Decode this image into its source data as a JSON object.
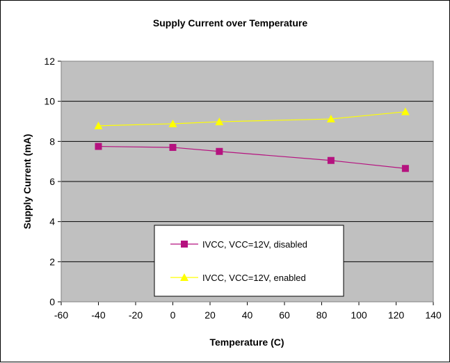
{
  "chart_data": {
    "type": "line",
    "title": "Supply Current over Temperature",
    "xlabel": "Temperature (C)",
    "ylabel": "Supply Current (mA)",
    "xlim": [
      -60,
      140
    ],
    "ylim": [
      0,
      12
    ],
    "x_ticks": [
      "-60",
      "-40",
      "-20",
      "0",
      "20",
      "40",
      "60",
      "80",
      "100",
      "120",
      "140"
    ],
    "y_ticks": [
      "0",
      "2",
      "4",
      "6",
      "8",
      "10",
      "12"
    ],
    "grid": "horizontal",
    "plot_background": "#c0c0c0",
    "legend_position": "inside-bottom-center",
    "series": [
      {
        "name": "IVCC, VCC=12V, disabled",
        "marker": "square",
        "color": "#b5127f",
        "x": [
          -40,
          0,
          25,
          85,
          125
        ],
        "y": [
          7.75,
          7.7,
          7.5,
          7.05,
          6.65
        ]
      },
      {
        "name": "IVCC, VCC=12V, enabled",
        "marker": "triangle",
        "color": "#ffff00",
        "x": [
          -40,
          0,
          25,
          85,
          125
        ],
        "y": [
          8.78,
          8.88,
          8.98,
          9.12,
          9.48
        ]
      }
    ]
  }
}
